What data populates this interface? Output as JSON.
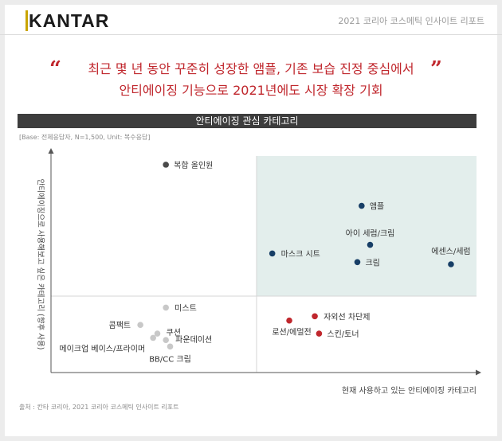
{
  "header": {
    "logo": "KANTAR",
    "report_title": "2021 코리아 코스메틱 인사이트 리포트"
  },
  "headline": {
    "open_quote": "“",
    "close_quote": "”",
    "line1": "최근 몇 년 동안 꾸준히 성장한 앰플, 기존 보습 진정 중심에서",
    "line2": "안티에이징 기능으로 2021년에도 시장 확장 기회"
  },
  "section_title": "안티에이징 관심 카테고리",
  "base_note": "[Base: 전체응답자, N=1,500, Unit: 복수응답]",
  "source": "출처 : 칸타 코리아, 2021 코리아 코스메틱 인사이트 리포트",
  "chart_data": {
    "type": "scatter",
    "title": "안티에이징 관심 카테고리",
    "xlabel": "현재 사용하고 있는 안티에이징 카테고리",
    "ylabel": "안티에이징으로 사용해보고 싶은 카테고리 (향후 사용)",
    "xlim": [
      0,
      100
    ],
    "ylim": [
      0,
      100
    ],
    "grid": false,
    "highlight_quadrant": "top-right",
    "highlight_color": "#e3eeec",
    "points": [
      {
        "label": "복합 올인원",
        "x": 27,
        "y": 96,
        "color": "#4a4a4a"
      },
      {
        "label": "앰플",
        "x": 73,
        "y": 77,
        "color": "#173e66"
      },
      {
        "label": "아이 세럼/크림",
        "x": 75,
        "y": 59,
        "color": "#173e66"
      },
      {
        "label": "마스크 시트",
        "x": 52,
        "y": 55,
        "color": "#173e66"
      },
      {
        "label": "크림",
        "x": 72,
        "y": 51,
        "color": "#173e66"
      },
      {
        "label": "에센스/세럼",
        "x": 94,
        "y": 50,
        "color": "#173e66"
      },
      {
        "label": "미스트",
        "x": 27,
        "y": 30,
        "color": "#c8c8c8"
      },
      {
        "label": "콤팩트",
        "x": 21,
        "y": 22,
        "color": "#c8c8c8"
      },
      {
        "label": "쿠션",
        "x": 25,
        "y": 18,
        "color": "#c8c8c8"
      },
      {
        "label": "파운데이션",
        "x": 27,
        "y": 15,
        "color": "#c8c8c8"
      },
      {
        "label": "메이크업 베이스/프라이머",
        "x": 24,
        "y": 16,
        "color": "#c8c8c8"
      },
      {
        "label": "BB/CC 크림",
        "x": 28,
        "y": 12,
        "color": "#c8c8c8"
      },
      {
        "label": "자외선 차단제",
        "x": 62,
        "y": 26,
        "color": "#c0272d"
      },
      {
        "label": "로션/에멀전",
        "x": 56,
        "y": 24,
        "color": "#c0272d"
      },
      {
        "label": "스킨/토너",
        "x": 63,
        "y": 18,
        "color": "#c0272d"
      }
    ]
  }
}
